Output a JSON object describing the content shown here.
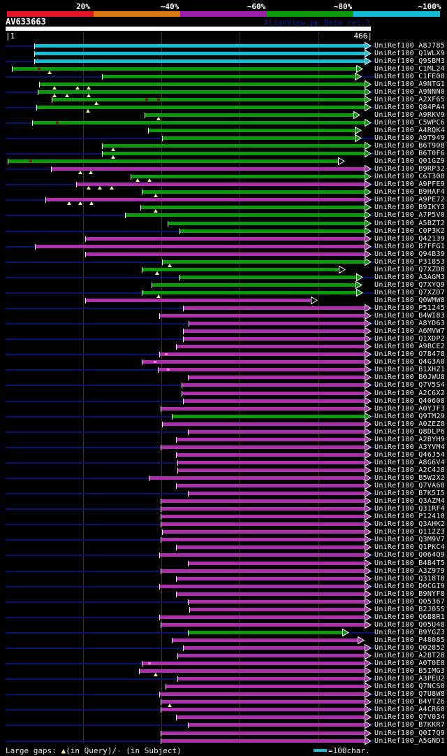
{
  "header": {
    "query_id": "AV633663",
    "watermark": "AlignView.pm Beta rel.7",
    "identity_key": {
      "labels": [
        "20%",
        "~40%",
        "~60%",
        "~80%",
        "~100%"
      ],
      "colors": [
        "#e41428",
        "#dd7712",
        "#9c1fae",
        "#0a9a0a",
        "#13bed6"
      ]
    }
  },
  "ruler": {
    "start_label": "|1",
    "end_label": "466|"
  },
  "legend": {
    "prefix": "Large gaps: ",
    "query_gap_symbol": "▲",
    "mid": "(in Query)/",
    "subject_gap_symbol": "-",
    "suffix": " (in Subject)",
    "scale_bar_label": "=100char."
  },
  "colors": {
    "cyan": "#13bed6",
    "green": "#0a9a0a",
    "magenta": "#ad2fad",
    "navy": "#0a1272",
    "grid": "#3c3c12",
    "gap_triangle": "#f0f0a0",
    "dash_on_green": "#801010",
    "dash_on_magenta": "#ff7fd0",
    "watermark": "#131368",
    "legend_dash": "#8090d8",
    "label_text": "#f0f0f0"
  },
  "chart_data": {
    "type": "table",
    "title": "AV633663",
    "x_axis": {
      "start": 1,
      "end": 466
    },
    "note": "rows = [subject_id, color_class(c=cyan,g=green,m=magenta), bar_start_px, bar_end_px, open_arrow, query_gap_px[], subject_gap_px[]]",
    "rows": [
      [
        "UniRef100_A8J785",
        "c",
        50,
        522,
        0,
        [],
        []
      ],
      [
        "UniRef100_Q1WLX9",
        "c",
        50,
        522,
        0,
        [],
        []
      ],
      [
        "UniRef100_Q9SBM3",
        "c",
        50,
        522,
        0,
        [],
        []
      ],
      [
        "UniRef100_C1ML24",
        "g",
        18,
        510,
        0,
        [
          71
        ],
        [
          56
        ]
      ],
      [
        "UniRef100_C1FE00",
        "g",
        147,
        508,
        0,
        [],
        []
      ],
      [
        "UniRef100_A9NTG1",
        "g",
        57,
        522,
        0,
        [
          78,
          111,
          127
        ],
        []
      ],
      [
        "UniRef100_A9NNN0",
        "g",
        55,
        522,
        0,
        [
          78,
          96,
          127
        ],
        []
      ],
      [
        "UniRef100_A2XF65",
        "g",
        75,
        522,
        0,
        [
          138
        ],
        [
          210,
          227
        ]
      ],
      [
        "UniRef100_Q84PA4",
        "g",
        53,
        522,
        0,
        [
          126
        ],
        []
      ],
      [
        "UniRef100_A9RKV9",
        "g",
        208,
        506,
        0,
        [
          227
        ],
        []
      ],
      [
        "UniRef100_C5WPC6",
        "g",
        47,
        522,
        0,
        [],
        [
          82
        ]
      ],
      [
        "UniRef100_A4RQK4",
        "g",
        213,
        508,
        0,
        [],
        []
      ],
      [
        "UniRef100_A9T949",
        "g",
        233,
        508,
        0,
        [],
        []
      ],
      [
        "UniRef100_B6T908",
        "g",
        147,
        522,
        0,
        [
          162
        ],
        []
      ],
      [
        "UniRef100_B6T0F6",
        "g",
        147,
        522,
        0,
        [
          162
        ],
        []
      ],
      [
        "UniRef100_Q01GZ9",
        "g",
        12,
        484,
        1,
        [],
        [
          44
        ]
      ],
      [
        "UniRef100_B9RP32",
        "m",
        74,
        522,
        0,
        [
          115,
          130
        ],
        []
      ],
      [
        "UniRef100_C6T308",
        "g",
        188,
        522,
        0,
        [
          197,
          214
        ],
        []
      ],
      [
        "UniRef100_A9PFE9",
        "m",
        110,
        522,
        0,
        [
          127,
          143,
          160
        ],
        []
      ],
      [
        "UniRef100_B9HAF4",
        "g",
        204,
        522,
        0,
        [
          223
        ],
        []
      ],
      [
        "UniRef100_A9PE72",
        "m",
        66,
        522,
        0,
        [
          99,
          115,
          131
        ],
        []
      ],
      [
        "UniRef100_B9IKY3",
        "g",
        202,
        522,
        0,
        [
          223
        ],
        []
      ],
      [
        "UniRef100_A7P5V0",
        "g",
        180,
        522,
        0,
        [],
        []
      ],
      [
        "UniRef100_A5BZT2",
        "g",
        241,
        522,
        0,
        [],
        []
      ],
      [
        "UniRef100_C0P3K2",
        "g",
        258,
        522,
        0,
        [],
        []
      ],
      [
        "UniRef100_Q42139",
        "m",
        123,
        522,
        0,
        [],
        []
      ],
      [
        "UniRef100_B7FFG1",
        "m",
        51,
        522,
        0,
        [],
        []
      ],
      [
        "UniRef100_Q94B39",
        "m",
        123,
        522,
        0,
        [],
        []
      ],
      [
        "UniRef100_P31853",
        "g",
        233,
        522,
        0,
        [
          243
        ],
        []
      ],
      [
        "UniRef100_Q7XZD8",
        "g",
        204,
        485,
        1,
        [
          225
        ],
        []
      ],
      [
        "UniRef100_A3AGM3",
        "g",
        257,
        510,
        0,
        [],
        []
      ],
      [
        "UniRef100_Q7XYQ9",
        "g",
        218,
        509,
        0,
        [],
        []
      ],
      [
        "UniRef100_Q7XZD7",
        "g",
        204,
        510,
        0,
        [
          227
        ],
        []
      ],
      [
        "UniRef100_Q0WMW8",
        "m",
        123,
        445,
        1,
        [],
        []
      ],
      [
        "UniRef100_P51245",
        "m",
        263,
        522,
        0,
        [],
        []
      ],
      [
        "UniRef100_B4WI83",
        "m",
        229,
        522,
        0,
        [],
        []
      ],
      [
        "UniRef100_A8YD63",
        "m",
        271,
        522,
        0,
        [],
        []
      ],
      [
        "UniRef100_A6MVW7",
        "m",
        263,
        522,
        0,
        [],
        []
      ],
      [
        "UniRef100_Q1XDP2",
        "m",
        263,
        522,
        0,
        [],
        []
      ],
      [
        "UniRef100_A9BCE2",
        "m",
        253,
        522,
        0,
        [],
        []
      ],
      [
        "UniRef100_O78478",
        "m",
        229,
        522,
        0,
        [],
        [
          238
        ]
      ],
      [
        "UniRef100_Q4G3A0",
        "m",
        204,
        522,
        0,
        [],
        [
          222
        ]
      ],
      [
        "UniRef100_B1XHZ1",
        "m",
        227,
        522,
        0,
        [],
        [
          241
        ]
      ],
      [
        "UniRef100_B0JWU8",
        "m",
        270,
        522,
        0,
        [],
        []
      ],
      [
        "UniRef100_Q7V5S4",
        "m",
        261,
        522,
        0,
        [],
        []
      ],
      [
        "UniRef100_A2C6X2",
        "m",
        261,
        522,
        0,
        [],
        []
      ],
      [
        "UniRef100_Q40608",
        "m",
        263,
        522,
        0,
        [],
        []
      ],
      [
        "UniRef100_A0YJF3",
        "m",
        231,
        522,
        0,
        [],
        []
      ],
      [
        "UniRef100_Q9TM29",
        "g",
        247,
        522,
        0,
        [],
        []
      ],
      [
        "UniRef100_A0ZEZ8",
        "m",
        233,
        522,
        0,
        [],
        []
      ],
      [
        "UniRef100_Q8DLP6",
        "m",
        270,
        522,
        0,
        [],
        []
      ],
      [
        "UniRef100_A2BYH9",
        "m",
        253,
        522,
        0,
        [],
        []
      ],
      [
        "UniRef100_A3YVM4",
        "m",
        231,
        522,
        0,
        [],
        []
      ],
      [
        "UniRef100_Q46J54",
        "m",
        253,
        522,
        0,
        [],
        []
      ],
      [
        "UniRef100_A8G6V4",
        "m",
        255,
        522,
        0,
        [],
        []
      ],
      [
        "UniRef100_A2C4J8",
        "m",
        255,
        522,
        0,
        [],
        []
      ],
      [
        "UniRef100_B5W2X2",
        "m",
        214,
        522,
        0,
        [],
        []
      ],
      [
        "UniRef100_Q7VA60",
        "m",
        253,
        522,
        0,
        [],
        []
      ],
      [
        "UniRef100_B7K5I5",
        "m",
        270,
        522,
        0,
        [],
        []
      ],
      [
        "UniRef100_Q3AZM4",
        "m",
        231,
        522,
        0,
        [],
        []
      ],
      [
        "UniRef100_Q31RF4",
        "m",
        231,
        522,
        0,
        [],
        []
      ],
      [
        "UniRef100_P12410",
        "m",
        231,
        522,
        0,
        [],
        []
      ],
      [
        "UniRef100_Q3AHK2",
        "m",
        231,
        522,
        0,
        [],
        []
      ],
      [
        "UniRef100_Q112Z3",
        "m",
        233,
        522,
        0,
        [],
        []
      ],
      [
        "UniRef100_Q3M9V7",
        "m",
        231,
        522,
        0,
        [],
        []
      ],
      [
        "UniRef100_Q1PKC4",
        "m",
        253,
        522,
        0,
        [],
        []
      ],
      [
        "UniRef100_Q064Q9",
        "m",
        229,
        522,
        0,
        [],
        []
      ],
      [
        "UniRef100_B4B4T5",
        "m",
        270,
        522,
        0,
        [],
        []
      ],
      [
        "UniRef100_A3Z979",
        "m",
        231,
        522,
        0,
        [],
        []
      ],
      [
        "UniRef100_Q318T8",
        "m",
        253,
        522,
        0,
        [],
        []
      ],
      [
        "UniRef100_D0CGI9",
        "m",
        229,
        522,
        0,
        [],
        []
      ],
      [
        "UniRef100_B9NYF8",
        "m",
        253,
        522,
        0,
        [],
        []
      ],
      [
        "UniRef100_Q05367",
        "m",
        270,
        522,
        0,
        [],
        []
      ],
      [
        "UniRef100_B2J055",
        "m",
        272,
        522,
        0,
        [],
        []
      ],
      [
        "UniRef100_Q6B8R1",
        "m",
        229,
        522,
        0,
        [],
        []
      ],
      [
        "UniRef100_Q05U48",
        "m",
        231,
        522,
        0,
        [],
        []
      ],
      [
        "UniRef100_B9YGZ3",
        "g",
        270,
        490,
        0,
        [],
        []
      ],
      [
        "UniRef100_P48085",
        "m",
        247,
        512,
        0,
        [],
        []
      ],
      [
        "UniRef100_Q02852",
        "m",
        263,
        522,
        0,
        [],
        []
      ],
      [
        "UniRef100_A2BT28",
        "m",
        255,
        522,
        0,
        [],
        []
      ],
      [
        "UniRef100_A0T0E8",
        "m",
        204,
        522,
        0,
        [],
        [
          214
        ]
      ],
      [
        "UniRef100_B5IMG3",
        "m",
        200,
        522,
        0,
        [
          223
        ],
        []
      ],
      [
        "UniRef100_A3PEU2",
        "m",
        255,
        522,
        0,
        [],
        []
      ],
      [
        "UniRef100_Q7NCS0",
        "m",
        238,
        522,
        0,
        [],
        []
      ],
      [
        "UniRef100_Q7U8W8",
        "m",
        229,
        522,
        0,
        [],
        []
      ],
      [
        "UniRef100_B4VTZ6",
        "m",
        231,
        522,
        0,
        [
          243
        ],
        []
      ],
      [
        "UniRef100_A4CR60",
        "m",
        231,
        522,
        0,
        [],
        []
      ],
      [
        "UniRef100_Q7V034",
        "m",
        253,
        522,
        0,
        [],
        []
      ],
      [
        "UniRef100_B7KKR7",
        "m",
        270,
        522,
        0,
        [],
        []
      ],
      [
        "UniRef100_Q0I7Q9",
        "m",
        231,
        522,
        0,
        [],
        []
      ],
      [
        "UniRef100_A5GND1",
        "m",
        231,
        522,
        0,
        [],
        []
      ]
    ]
  }
}
